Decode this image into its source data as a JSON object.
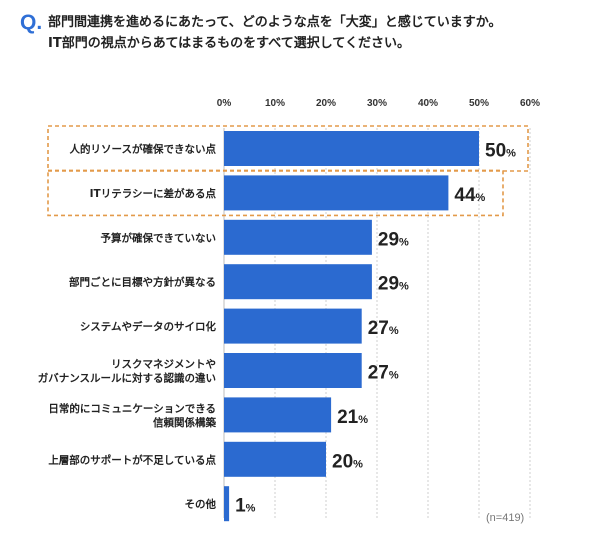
{
  "question": {
    "mark": "Q.",
    "line1": "部門間連携を進めるにあたって、どのような点を「大変」と感じていますか。",
    "line2": "IT部門の視点からあてはまるものをすべて選択してください。"
  },
  "sample_note": "(n=419)",
  "colors": {
    "bar": "#2b6ad0",
    "highlight_border": "#e39a4a",
    "grid": "#cfcfcf",
    "accent": "#2f6fd6"
  },
  "chart_data": {
    "type": "bar",
    "orientation": "horizontal",
    "unit": "%",
    "xlim": [
      0,
      60
    ],
    "ticks": [
      0,
      10,
      20,
      30,
      40,
      50,
      60
    ],
    "tick_labels": [
      "0%",
      "10%",
      "20%",
      "30%",
      "40%",
      "50%",
      "60%"
    ],
    "grid": true,
    "categories": [
      [
        "人的リソースが確保できない点"
      ],
      [
        "ITリテラシーに差がある点"
      ],
      [
        "予算が確保できていない"
      ],
      [
        "部門ごとに目標や方針が異なる"
      ],
      [
        "システムやデータのサイロ化"
      ],
      [
        "リスクマネジメントや",
        "ガバナンスルールに対する認識の違い"
      ],
      [
        "日常的にコミュニケーションできる",
        "信頼関係構築"
      ],
      [
        "上層部のサポートが不足している点"
      ],
      [
        "その他"
      ]
    ],
    "values": [
      50,
      44,
      29,
      29,
      27,
      27,
      21,
      20,
      1
    ],
    "value_labels": [
      "50",
      "44",
      "29",
      "29",
      "27",
      "27",
      "21",
      "20",
      "1"
    ],
    "highlighted": [
      0,
      1
    ]
  }
}
